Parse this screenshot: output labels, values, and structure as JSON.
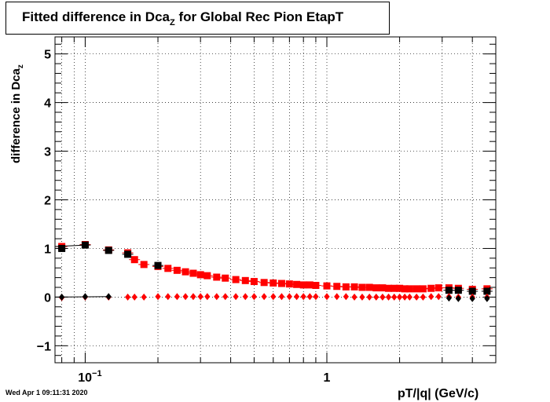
{
  "title": {
    "prefix": "Fitted difference in Dca",
    "subscript": "Z",
    "suffix": " for Global Rec Pion EtapT"
  },
  "footer": {
    "timestamp": "Wed Apr  1 09:11:31 2020"
  },
  "chart_data": {
    "type": "scatter",
    "title": "Fitted difference in Dca_Z for Global Rec Pion EtapT",
    "xlabel": "pT/|q| (GeV/c)",
    "ylabel_main": "difference in Dca",
    "ylabel_sub": "z",
    "x_scale": "log",
    "xlim": [
      0.075,
      5.0
    ],
    "ylim": [
      -1.35,
      5.35
    ],
    "grid": true,
    "x_ticks": [
      {
        "value": 0.1,
        "label_base": "10",
        "label_exp": "−1"
      },
      {
        "value": 1,
        "label_base": "1",
        "label_exp": ""
      }
    ],
    "y_ticks": [
      {
        "value": -1,
        "label": "−1"
      },
      {
        "value": 0,
        "label": "0"
      },
      {
        "value": 1,
        "label": "1"
      },
      {
        "value": 2,
        "label": "2"
      },
      {
        "value": 3,
        "label": "3"
      },
      {
        "value": 4,
        "label": "4"
      },
      {
        "value": 5,
        "label": "5"
      }
    ],
    "series": [
      {
        "marker": "square",
        "color": "#ff0000",
        "points": [
          [
            0.08,
            1.04
          ],
          [
            0.1,
            1.08
          ],
          [
            0.125,
            0.97
          ],
          [
            0.15,
            0.91
          ],
          [
            0.16,
            0.77
          ],
          [
            0.175,
            0.67
          ],
          [
            0.2,
            0.63
          ],
          [
            0.22,
            0.59
          ],
          [
            0.24,
            0.55
          ],
          [
            0.26,
            0.52
          ],
          [
            0.28,
            0.49
          ],
          [
            0.3,
            0.46
          ],
          [
            0.32,
            0.44
          ],
          [
            0.35,
            0.41
          ],
          [
            0.38,
            0.39
          ],
          [
            0.42,
            0.36
          ],
          [
            0.46,
            0.34
          ],
          [
            0.5,
            0.32
          ],
          [
            0.55,
            0.3
          ],
          [
            0.6,
            0.29
          ],
          [
            0.65,
            0.28
          ],
          [
            0.7,
            0.27
          ],
          [
            0.75,
            0.26
          ],
          [
            0.8,
            0.25
          ],
          [
            0.85,
            0.25
          ],
          [
            0.9,
            0.24
          ],
          [
            1.0,
            0.23
          ],
          [
            1.1,
            0.22
          ],
          [
            1.2,
            0.21
          ],
          [
            1.3,
            0.21
          ],
          [
            1.4,
            0.2
          ],
          [
            1.5,
            0.2
          ],
          [
            1.6,
            0.19
          ],
          [
            1.7,
            0.19
          ],
          [
            1.8,
            0.18
          ],
          [
            1.9,
            0.18
          ],
          [
            2.0,
            0.18
          ],
          [
            2.1,
            0.17
          ],
          [
            2.2,
            0.17
          ],
          [
            2.35,
            0.17
          ],
          [
            2.5,
            0.17
          ],
          [
            2.7,
            0.18
          ],
          [
            2.9,
            0.19
          ],
          [
            3.2,
            0.19
          ],
          [
            3.5,
            0.18
          ],
          [
            4.0,
            0.16
          ],
          [
            4.6,
            0.17
          ]
        ]
      },
      {
        "marker": "square",
        "color": "#000000",
        "points": [
          [
            0.08,
            1.0
          ],
          [
            0.1,
            1.07
          ],
          [
            0.125,
            0.96
          ],
          [
            0.15,
            0.88
          ],
          [
            0.2,
            0.65
          ],
          [
            3.2,
            0.14
          ],
          [
            3.5,
            0.14
          ],
          [
            4.0,
            0.12
          ],
          [
            4.6,
            0.12
          ]
        ]
      },
      {
        "marker": "diamond",
        "color": "#ff0000",
        "points": [
          [
            0.08,
            -0.01
          ],
          [
            0.1,
            0.0
          ],
          [
            0.125,
            0.0
          ],
          [
            0.15,
            0.0
          ],
          [
            0.16,
            0.0
          ],
          [
            0.175,
            0.0
          ],
          [
            0.2,
            0.01
          ],
          [
            0.22,
            0.01
          ],
          [
            0.24,
            0.01
          ],
          [
            0.26,
            0.01
          ],
          [
            0.28,
            0.01
          ],
          [
            0.3,
            0.01
          ],
          [
            0.32,
            0.01
          ],
          [
            0.35,
            0.01
          ],
          [
            0.38,
            0.01
          ],
          [
            0.42,
            0.01
          ],
          [
            0.46,
            0.01
          ],
          [
            0.5,
            0.01
          ],
          [
            0.55,
            0.01
          ],
          [
            0.6,
            0.01
          ],
          [
            0.65,
            0.01
          ],
          [
            0.7,
            0.01
          ],
          [
            0.75,
            0.01
          ],
          [
            0.8,
            0.01
          ],
          [
            0.85,
            0.01
          ],
          [
            0.9,
            0.01
          ],
          [
            1.0,
            0.01
          ],
          [
            1.1,
            0.01
          ],
          [
            1.2,
            0.01
          ],
          [
            1.3,
            0.0
          ],
          [
            1.4,
            0.0
          ],
          [
            1.5,
            0.0
          ],
          [
            1.6,
            0.0
          ],
          [
            1.7,
            0.0
          ],
          [
            1.8,
            0.0
          ],
          [
            1.9,
            0.0
          ],
          [
            2.0,
            0.0
          ],
          [
            2.1,
            0.0
          ],
          [
            2.2,
            0.0
          ],
          [
            2.35,
            0.0
          ],
          [
            2.5,
            0.0
          ],
          [
            2.7,
            0.01
          ],
          [
            2.9,
            0.01
          ],
          [
            3.2,
            0.01
          ],
          [
            3.5,
            0.0
          ],
          [
            4.0,
            0.0
          ],
          [
            4.6,
            0.0
          ]
        ]
      },
      {
        "marker": "diamond",
        "color": "#000000",
        "points": [
          [
            0.08,
            0.0
          ],
          [
            0.1,
            0.01
          ],
          [
            0.125,
            0.01
          ],
          [
            3.2,
            -0.02
          ],
          [
            3.5,
            -0.03
          ],
          [
            4.0,
            -0.03
          ],
          [
            4.6,
            -0.03
          ]
        ]
      }
    ]
  }
}
